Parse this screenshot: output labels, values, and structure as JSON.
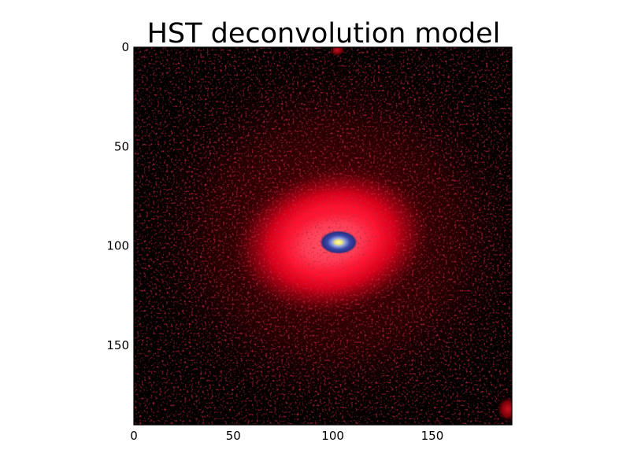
{
  "chart_data": {
    "type": "heatmap",
    "title": "HST deconvolution model",
    "xlabel": "",
    "ylabel": "",
    "xlim": [
      0,
      190
    ],
    "ylim": [
      190,
      0
    ],
    "xticks": [
      0,
      50,
      100,
      150
    ],
    "yticks": [
      0,
      50,
      100,
      150
    ],
    "grid": false,
    "colormap": [
      "#000000",
      "#5a0008",
      "#c80014",
      "#ff1430",
      "#ff3a52",
      "#2b2f8a",
      "#6e80cc",
      "#e8e070",
      "#ffffa0"
    ],
    "sources": [
      {
        "name": "galaxy-center",
        "x": 103,
        "y": 99
      },
      {
        "name": "edge-blob-bottom-right",
        "x": 188,
        "y": 182
      },
      {
        "name": "edge-blob-top",
        "x": 102,
        "y": 2
      }
    ]
  }
}
